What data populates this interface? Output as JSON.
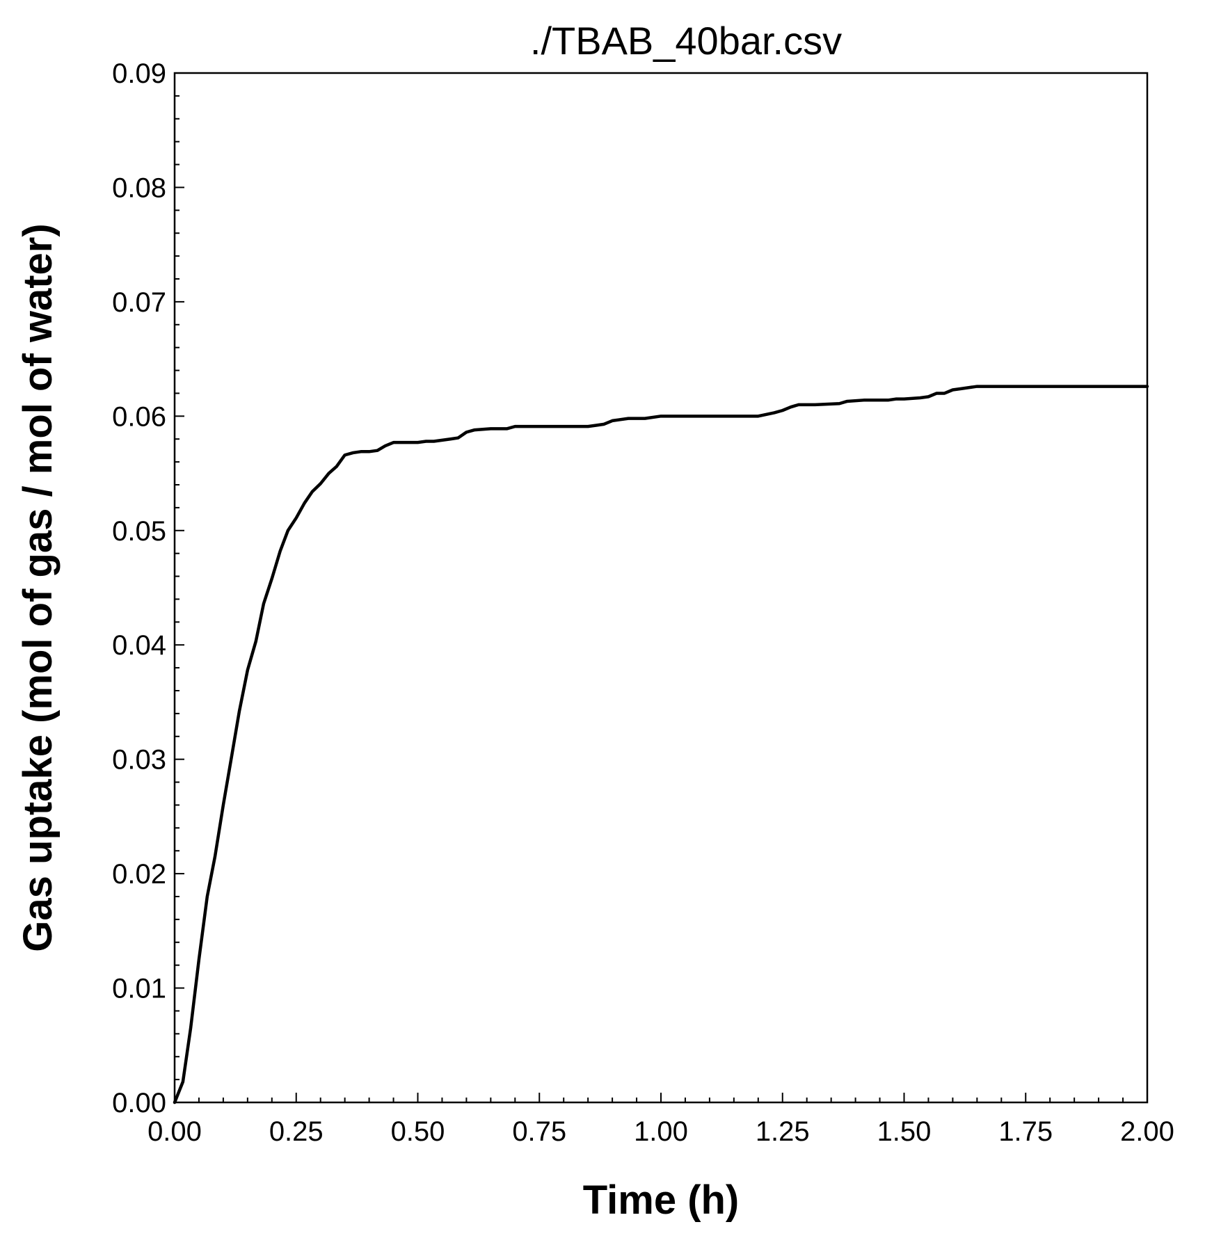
{
  "chart_data": {
    "type": "line",
    "title": "./TBAB_40bar.csv",
    "xlabel": "Time (h)",
    "ylabel": "Gas uptake (mol of gas / mol of water)",
    "xlim": [
      0,
      2.0
    ],
    "ylim": [
      0,
      0.09
    ],
    "x_ticks": [
      "0.00",
      "0.25",
      "0.50",
      "0.75",
      "1.00",
      "1.25",
      "1.50",
      "1.75",
      "2.00"
    ],
    "y_ticks": [
      "0.00",
      "0.01",
      "0.02",
      "0.03",
      "0.04",
      "0.05",
      "0.06",
      "0.07",
      "0.08",
      "0.09"
    ],
    "grid": false,
    "series": [
      {
        "x": [
          0.0,
          0.017,
          0.033,
          0.05,
          0.067,
          0.083,
          0.1,
          0.117,
          0.133,
          0.15,
          0.167,
          0.183,
          0.2,
          0.217,
          0.233,
          0.25,
          0.267,
          0.283,
          0.3,
          0.317,
          0.333,
          0.35,
          0.367,
          0.383,
          0.4,
          0.417,
          0.433,
          0.45,
          0.5,
          0.517,
          0.533,
          0.55,
          0.567,
          0.583,
          0.6,
          0.617,
          0.65,
          0.683,
          0.7,
          0.75,
          0.8,
          0.85,
          0.867,
          0.883,
          0.9,
          0.933,
          0.967,
          1.0,
          1.1,
          1.2,
          1.233,
          1.25,
          1.267,
          1.283,
          1.317,
          1.367,
          1.383,
          1.417,
          1.467,
          1.483,
          1.5,
          1.533,
          1.55,
          1.567,
          1.583,
          1.6,
          1.617,
          1.633,
          1.65,
          1.7,
          1.733,
          1.75,
          1.8,
          1.85,
          1.9,
          1.95,
          2.0
        ],
        "y": [
          0.0,
          0.0018,
          0.0065,
          0.0125,
          0.018,
          0.0215,
          0.026,
          0.0302,
          0.0342,
          0.0378,
          0.0403,
          0.0436,
          0.0458,
          0.0482,
          0.05,
          0.0511,
          0.0524,
          0.0534,
          0.0541,
          0.055,
          0.0556,
          0.0566,
          0.0568,
          0.0569,
          0.0569,
          0.057,
          0.0574,
          0.0577,
          0.0577,
          0.0578,
          0.0578,
          0.0579,
          0.058,
          0.0581,
          0.0586,
          0.0588,
          0.0589,
          0.0589,
          0.0591,
          0.0591,
          0.0591,
          0.0591,
          0.0592,
          0.0593,
          0.0596,
          0.0598,
          0.0598,
          0.06,
          0.06,
          0.06,
          0.0603,
          0.0605,
          0.0608,
          0.061,
          0.061,
          0.0611,
          0.0613,
          0.0614,
          0.0614,
          0.0615,
          0.0615,
          0.0616,
          0.0617,
          0.062,
          0.062,
          0.0623,
          0.0624,
          0.0625,
          0.0626,
          0.0626,
          0.0626,
          0.0626,
          0.0626,
          0.0626,
          0.0626,
          0.0626,
          0.0626
        ]
      }
    ]
  }
}
